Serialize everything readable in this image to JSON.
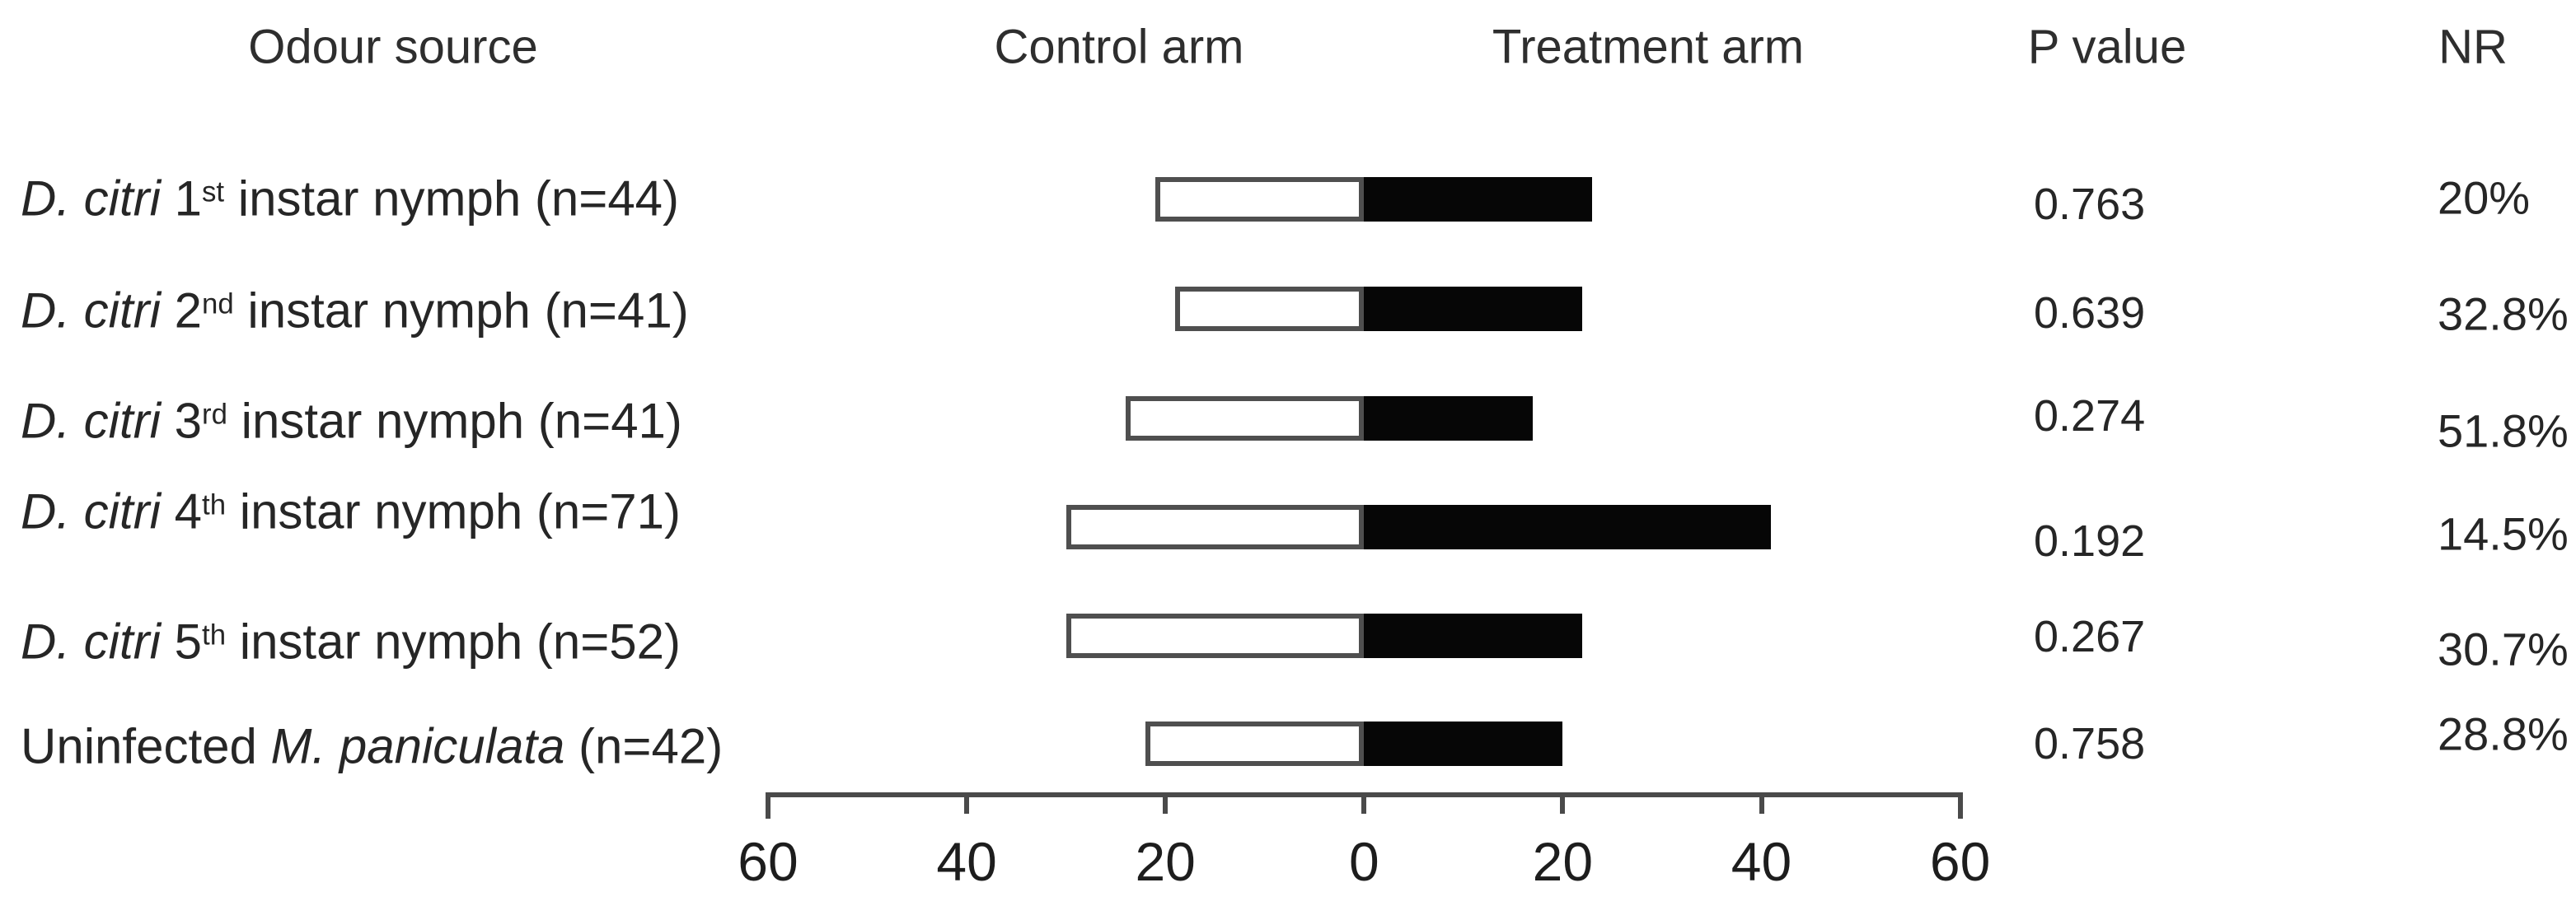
{
  "headers": {
    "odour_source": "Odour source",
    "control_arm": "Control arm",
    "treatment_arm": "Treatment arm",
    "p_value": "P value",
    "nr": "NR"
  },
  "colors": {
    "treatment_bar_fill": "#060606",
    "control_bar_fill": "#ffffff",
    "control_bar_border": "#4f4f4f",
    "axis": "#4a4a4a",
    "text": "#262626"
  },
  "chart_data": {
    "type": "bar",
    "subtype": "diverging-horizontal-two-arm",
    "title": "",
    "xlabel": "",
    "ylabel": "",
    "axis": {
      "range": [
        -60,
        60
      ],
      "tick_step": 20,
      "tick_labels": [
        "60",
        "40",
        "20",
        "0",
        "20",
        "40",
        "60"
      ],
      "grid": false
    },
    "legend": {
      "control_side": "left (white bars)",
      "treatment_side": "right (black bars)"
    },
    "columns": [
      "Odour source",
      "Control arm",
      "Treatment arm",
      "P value",
      "NR"
    ],
    "rows": [
      {
        "label_text": "D. citri 1st instar nymph (n=44)",
        "label_segments": [
          {
            "t": "D. citri",
            "i": true
          },
          {
            "t": " 1"
          },
          {
            "t": "st",
            "sup": true
          },
          {
            "t": " instar nymph (n=44)"
          }
        ],
        "n": 44,
        "control": 21,
        "treatment": 23,
        "p_value": "0.763",
        "nr": "20%"
      },
      {
        "label_text": "D. citri 2nd instar nymph (n=41)",
        "label_segments": [
          {
            "t": "D. citri",
            "i": true
          },
          {
            "t": " 2"
          },
          {
            "t": "nd",
            "sup": true
          },
          {
            "t": " instar nymph (n=41)"
          }
        ],
        "n": 41,
        "control": 19,
        "treatment": 22,
        "p_value": "0.639",
        "nr": "32.8%"
      },
      {
        "label_text": "D. citri 3rd instar nymph (n=41)",
        "label_segments": [
          {
            "t": "D. citri",
            "i": true
          },
          {
            "t": " 3"
          },
          {
            "t": "rd",
            "sup": true
          },
          {
            "t": " instar nymph (n=41)"
          }
        ],
        "n": 41,
        "control": 24,
        "treatment": 17,
        "p_value": "0.274",
        "nr": "51.8%"
      },
      {
        "label_text": "D. citri 4th instar nymph (n=71)",
        "label_segments": [
          {
            "t": "D. citri",
            "i": true
          },
          {
            "t": " 4"
          },
          {
            "t": "th",
            "sup": true
          },
          {
            "t": " instar nymph (n=71)"
          }
        ],
        "n": 71,
        "control": 30,
        "treatment": 41,
        "p_value": "0.192",
        "nr": "14.5%"
      },
      {
        "label_text": "D. citri 5th instar nymph (n=52)",
        "label_segments": [
          {
            "t": "D. citri",
            "i": true
          },
          {
            "t": " 5"
          },
          {
            "t": "th",
            "sup": true
          },
          {
            "t": " instar nymph (n=52)"
          }
        ],
        "n": 52,
        "control": 30,
        "treatment": 22,
        "p_value": "0.267",
        "nr": "30.7%"
      },
      {
        "label_text": "Uninfected M. paniculata (n=42)",
        "label_segments": [
          {
            "t": "Uninfected "
          },
          {
            "t": "M. paniculata",
            "i": true
          },
          {
            "t": " (n=42)"
          }
        ],
        "n": 42,
        "control": 22,
        "treatment": 20,
        "p_value": "0.758",
        "nr": "28.8%"
      }
    ]
  }
}
